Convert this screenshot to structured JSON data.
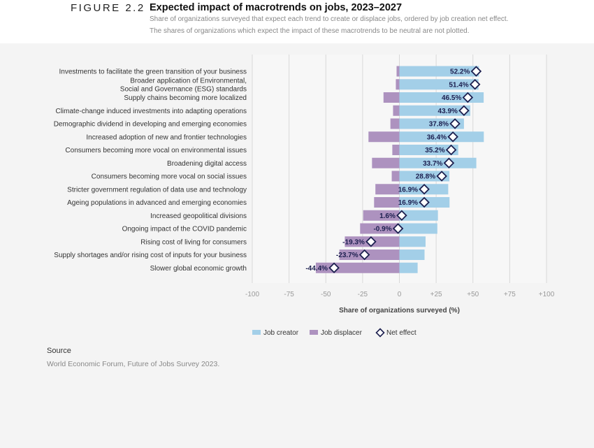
{
  "figure_label": "FIGURE 2.2",
  "title": "Expected impact of macrotrends on jobs, 2023–2027",
  "subtitle_lines": [
    "Share of organizations surveyed that expect each trend to create or displace jobs, ordered by job creation net effect.",
    "The shares of organizations which expect the impact of these macrotrends to be neutral are not plotted."
  ],
  "source_heading": "Source",
  "source_text": "World Economic Forum, Future of Jobs Survey 2023.",
  "chart_data": {
    "type": "bar",
    "orientation": "horizontal-diverging",
    "xlabel": "Share of organizations surveyed (%)",
    "xlim": [
      -100,
      100
    ],
    "xticks": [
      "-100",
      "-75",
      "-50",
      "-25",
      "0",
      "+25",
      "+50",
      "+75",
      "+100"
    ],
    "xtick_values": [
      -100,
      -75,
      -50,
      -25,
      0,
      25,
      50,
      75,
      100
    ],
    "grid": true,
    "legend_position": "bottom",
    "colors": {
      "creator": "#a3cfe8",
      "displacer": "#ad92bf",
      "net": "#1c1f4f"
    },
    "categories": [
      [
        "Investments to facilitate the green transition of your business"
      ],
      [
        "Broader application of Environmental,",
        "Social and Governance (ESG) standards"
      ],
      [
        "Supply chains becoming more localized"
      ],
      [
        "Climate-change induced investments into adapting operations"
      ],
      [
        "Demographic dividend in developing and emerging economies"
      ],
      [
        "Increased adoption of new and frontier technologies"
      ],
      [
        "Consumers becoming more vocal on environmental issues"
      ],
      [
        "Broadening digital access"
      ],
      [
        "Consumers becoming more vocal on social issues"
      ],
      [
        "Stricter government regulation of data use and technology"
      ],
      [
        "Ageing populations in advanced and emerging economies"
      ],
      [
        "Increased geopolitical divisions"
      ],
      [
        "Ongoing impact of the COVID pandemic"
      ],
      [
        "Rising cost of living for consumers"
      ],
      [
        "Supply shortages and/or rising cost of inputs for your business"
      ],
      [
        "Slower global economic growth"
      ]
    ],
    "series": [
      {
        "name": "Job creator",
        "values": [
          54.1,
          53.8,
          57.3,
          48.2,
          43.9,
          57.4,
          40.0,
          52.3,
          34.0,
          33.2,
          34.1,
          26.2,
          25.8,
          17.8,
          17.1,
          12.4
        ]
      },
      {
        "name": "Job displacer",
        "values": [
          -1.9,
          -2.4,
          -10.8,
          -4.3,
          -6.1,
          -21.0,
          -4.8,
          -18.6,
          -5.2,
          -16.3,
          -17.2,
          -24.6,
          -26.7,
          -37.1,
          -40.8,
          -56.8
        ]
      },
      {
        "name": "Net effect",
        "values": [
          52.2,
          51.4,
          46.5,
          43.9,
          37.8,
          36.4,
          35.2,
          33.7,
          28.8,
          16.9,
          16.9,
          1.6,
          -0.9,
          -19.3,
          -23.7,
          -44.4
        ]
      }
    ],
    "net_labels": [
      "52.2%",
      "51.4%",
      "46.5%",
      "43.9%",
      "37.8%",
      "36.4%",
      "35.2%",
      "33.7%",
      "28.8%",
      "16.9%",
      "16.9%",
      "1.6%",
      "-0.9%",
      "-19.3%",
      "-23.7%",
      "-44.4%"
    ]
  }
}
